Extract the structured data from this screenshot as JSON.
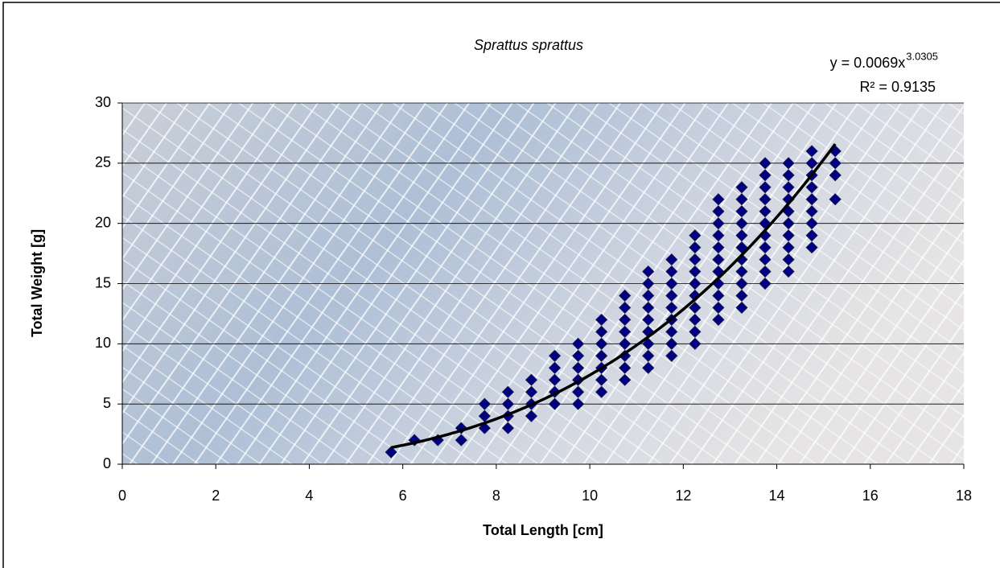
{
  "chart_data": {
    "type": "scatter",
    "title": "Sprattus sprattus",
    "x_label": "Total Length [cm]",
    "y_label": "Total Weight [g]",
    "equation": "y = 0.0069x",
    "equation_exponent": "3.0305",
    "r_squared": "R² = 0.9135",
    "trendline": {
      "type": "power",
      "a": 0.0069,
      "b": 3.0305,
      "color": "#000000"
    },
    "xlim": [
      0,
      18
    ],
    "xticks": [
      0,
      2,
      4,
      6,
      8,
      10,
      12,
      14,
      16,
      18
    ],
    "ylim": [
      0,
      30
    ],
    "yticks": [
      0,
      5,
      10,
      15,
      20,
      25,
      30
    ],
    "grid": true,
    "series": [
      {
        "color": "#000080",
        "x": [
          5.75,
          6.25,
          6.75,
          7.25,
          7.25,
          7.75,
          7.75,
          7.75,
          8.25,
          8.25,
          8.25,
          8.25,
          8.75,
          8.75,
          8.75,
          8.75,
          9.25,
          9.25,
          9.25,
          9.25,
          9.25,
          9.75,
          9.75,
          9.75,
          9.75,
          9.75,
          9.75,
          10.25,
          10.25,
          10.25,
          10.25,
          10.25,
          10.25,
          10.25,
          10.75,
          10.75,
          10.75,
          10.75,
          10.75,
          10.75,
          10.75,
          10.75,
          11.25,
          11.25,
          11.25,
          11.25,
          11.25,
          11.25,
          11.25,
          11.25,
          11.25,
          11.75,
          11.75,
          11.75,
          11.75,
          11.75,
          11.75,
          11.75,
          11.75,
          11.75,
          12.25,
          12.25,
          12.25,
          12.25,
          12.25,
          12.25,
          12.25,
          12.25,
          12.25,
          12.25,
          12.75,
          12.75,
          12.75,
          12.75,
          12.75,
          12.75,
          12.75,
          12.75,
          12.75,
          12.75,
          12.75,
          13.25,
          13.25,
          13.25,
          13.25,
          13.25,
          13.25,
          13.25,
          13.25,
          13.25,
          13.25,
          13.25,
          13.75,
          13.75,
          13.75,
          13.75,
          13.75,
          13.75,
          13.75,
          13.75,
          13.75,
          13.75,
          13.75,
          14.25,
          14.25,
          14.25,
          14.25,
          14.25,
          14.25,
          14.25,
          14.25,
          14.25,
          14.25,
          14.75,
          14.75,
          14.75,
          14.75,
          14.75,
          14.75,
          14.75,
          14.75,
          14.75,
          15.25,
          15.25,
          15.25,
          15.25
        ],
        "values": [
          1,
          2,
          2,
          2,
          3,
          3,
          4,
          5,
          3,
          4,
          5,
          6,
          4,
          5,
          6,
          7,
          5,
          6,
          7,
          8,
          9,
          5,
          6,
          7,
          8,
          9,
          10,
          6,
          7,
          8,
          9,
          10,
          11,
          12,
          7,
          8,
          9,
          10,
          11,
          12,
          13,
          14,
          8,
          9,
          10,
          11,
          12,
          13,
          14,
          15,
          16,
          9,
          10,
          11,
          12,
          13,
          14,
          15,
          16,
          17,
          10,
          11,
          12,
          13,
          14,
          15,
          16,
          17,
          18,
          19,
          12,
          13,
          14,
          15,
          16,
          17,
          18,
          19,
          20,
          21,
          22,
          13,
          14,
          15,
          16,
          17,
          18,
          19,
          20,
          21,
          22,
          23,
          15,
          16,
          17,
          18,
          19,
          20,
          21,
          22,
          23,
          24,
          25,
          16,
          17,
          18,
          19,
          20,
          21,
          22,
          23,
          24,
          25,
          18,
          19,
          20,
          21,
          22,
          23,
          24,
          25,
          26,
          22,
          24,
          25,
          26
        ]
      }
    ]
  }
}
